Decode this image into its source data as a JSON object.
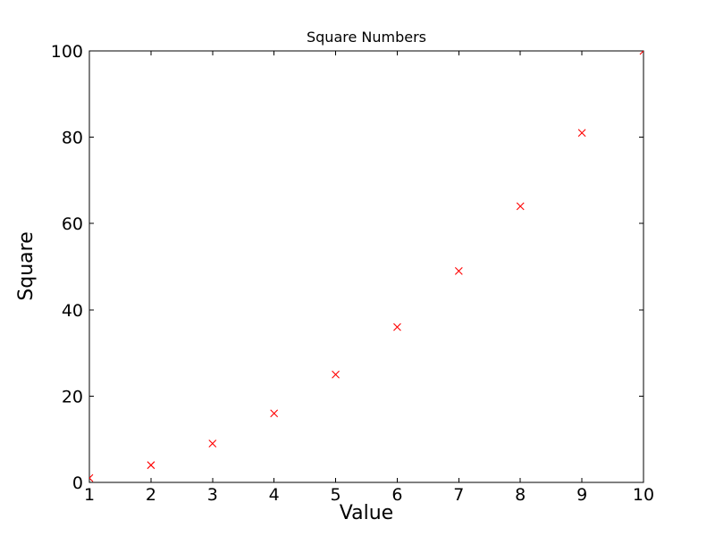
{
  "chart_data": {
    "type": "scatter",
    "title": "Square Numbers",
    "xlabel": "Value",
    "ylabel": "Square",
    "x": [
      1,
      2,
      3,
      4,
      5,
      6,
      7,
      8,
      9,
      10
    ],
    "y": [
      1,
      4,
      9,
      16,
      25,
      36,
      49,
      64,
      81,
      100
    ],
    "x_ticks": [
      1,
      2,
      3,
      4,
      5,
      6,
      7,
      8,
      9,
      10
    ],
    "y_ticks": [
      0,
      20,
      40,
      60,
      80,
      100
    ],
    "xlim": [
      1,
      10
    ],
    "ylim": [
      0,
      100
    ],
    "marker": "x",
    "marker_color": "#ff0000",
    "axis_color": "#000000",
    "background_color": "#ffffff",
    "grid": false,
    "legend": "none"
  }
}
